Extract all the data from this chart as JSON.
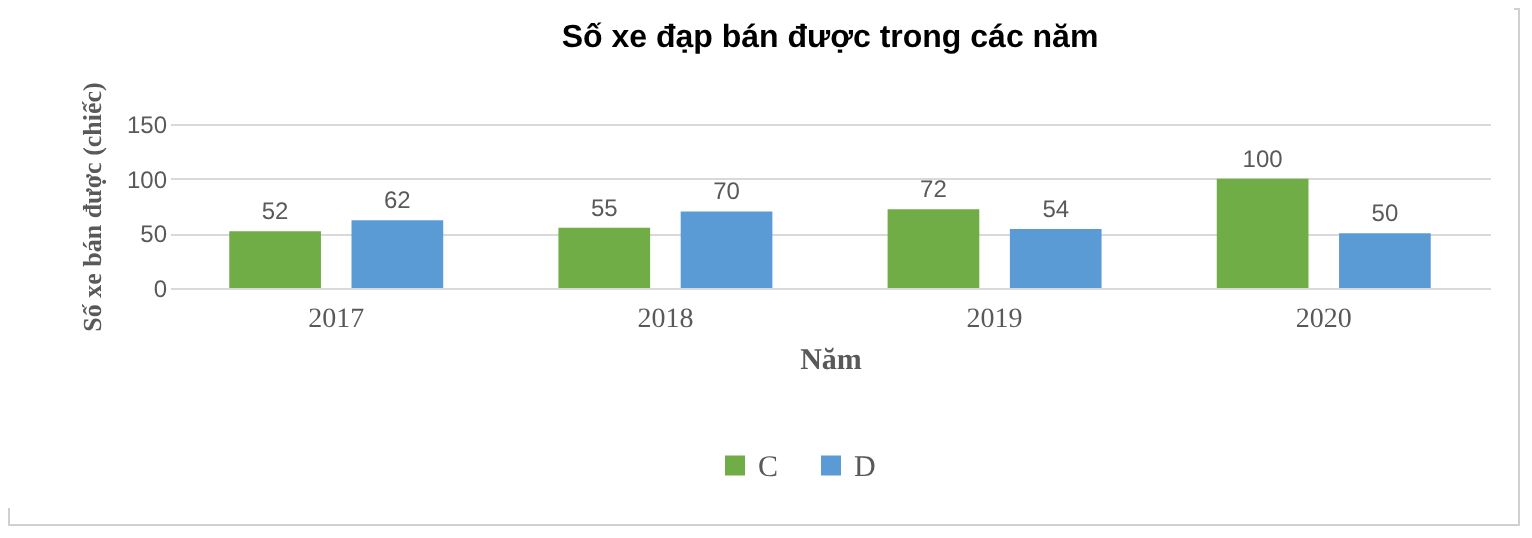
{
  "chart_data": {
    "type": "bar",
    "title": "Số xe đạp bán được trong các năm",
    "xlabel": "Năm",
    "ylabel": "Số xe bán được (chiếc)",
    "categories": [
      "2017",
      "2018",
      "2019",
      "2020"
    ],
    "series": [
      {
        "name": "C",
        "color": "#70ad47",
        "values": [
          52,
          55,
          72,
          100
        ]
      },
      {
        "name": "D",
        "color": "#5b9bd5",
        "values": [
          62,
          70,
          54,
          50
        ]
      }
    ],
    "ylim": [
      0,
      150
    ],
    "yticks": [
      0,
      50,
      100,
      150
    ],
    "grid": "y",
    "legend": "bottom",
    "data_labels": true
  }
}
